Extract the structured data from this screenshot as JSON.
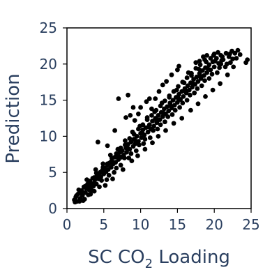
{
  "chart_data": {
    "type": "scatter",
    "title": "",
    "xlabel": "SC CO",
    "xlabel_subscript": "2",
    "xlabel_suffix": " Loading",
    "ylabel": "Prediction",
    "xlim": [
      0,
      25
    ],
    "ylim": [
      0,
      25
    ],
    "xticks": [
      "0",
      "5",
      "10",
      "15",
      "20",
      "25"
    ],
    "yticks": [
      "0",
      "5",
      "10",
      "15",
      "20",
      "25"
    ],
    "grid": false,
    "marker_color": "#000000",
    "series": [
      {
        "points": [
          [
            1.0,
            1.2
          ],
          [
            1.2,
            1.6
          ],
          [
            1.4,
            1.0
          ],
          [
            1.5,
            2.0
          ],
          [
            1.8,
            1.4
          ],
          [
            2.0,
            2.5
          ],
          [
            2.1,
            1.8
          ],
          [
            2.3,
            3.0
          ],
          [
            2.5,
            2.2
          ],
          [
            2.6,
            2.8
          ],
          [
            2.8,
            3.4
          ],
          [
            3.0,
            2.6
          ],
          [
            3.1,
            3.8
          ],
          [
            3.3,
            3.1
          ],
          [
            3.5,
            4.2
          ],
          [
            3.6,
            3.5
          ],
          [
            3.8,
            4.0
          ],
          [
            4.0,
            3.4
          ],
          [
            4.1,
            4.6
          ],
          [
            4.3,
            4.1
          ],
          [
            4.5,
            5.0
          ],
          [
            4.6,
            4.4
          ],
          [
            4.8,
            5.3
          ],
          [
            5.0,
            4.8
          ],
          [
            5.1,
            5.6
          ],
          [
            5.3,
            5.1
          ],
          [
            5.5,
            6.0
          ],
          [
            5.6,
            5.4
          ],
          [
            5.8,
            6.3
          ],
          [
            6.0,
            5.7
          ],
          [
            6.1,
            6.6
          ],
          [
            6.3,
            6.2
          ],
          [
            6.5,
            7.1
          ],
          [
            6.6,
            6.4
          ],
          [
            6.8,
            7.3
          ],
          [
            7.0,
            6.8
          ],
          [
            7.2,
            7.8
          ],
          [
            7.4,
            7.1
          ],
          [
            7.5,
            8.0
          ],
          [
            7.7,
            7.4
          ],
          [
            8.0,
            8.4
          ],
          [
            8.1,
            7.8
          ],
          [
            8.3,
            8.9
          ],
          [
            8.5,
            8.2
          ],
          [
            8.7,
            9.2
          ],
          [
            9.0,
            8.6
          ],
          [
            9.1,
            9.6
          ],
          [
            9.3,
            9.0
          ],
          [
            9.5,
            10.0
          ],
          [
            9.7,
            9.3
          ],
          [
            10.0,
            10.4
          ],
          [
            10.1,
            9.8
          ],
          [
            10.3,
            10.9
          ],
          [
            10.5,
            10.2
          ],
          [
            10.7,
            11.2
          ],
          [
            11.0,
            10.6
          ],
          [
            11.2,
            11.6
          ],
          [
            11.4,
            11.0
          ],
          [
            11.6,
            12.1
          ],
          [
            11.8,
            11.4
          ],
          [
            12.0,
            12.5
          ],
          [
            12.2,
            11.9
          ],
          [
            12.4,
            12.9
          ],
          [
            12.6,
            12.3
          ],
          [
            12.8,
            13.3
          ],
          [
            13.0,
            12.7
          ],
          [
            13.2,
            13.8
          ],
          [
            13.4,
            13.1
          ],
          [
            13.6,
            14.1
          ],
          [
            13.8,
            13.5
          ],
          [
            14.0,
            14.6
          ],
          [
            14.2,
            13.9
          ],
          [
            14.4,
            15.0
          ],
          [
            14.6,
            14.3
          ],
          [
            14.8,
            15.4
          ],
          [
            15.0,
            14.7
          ],
          [
            15.2,
            15.8
          ],
          [
            15.4,
            15.1
          ],
          [
            15.6,
            16.2
          ],
          [
            15.8,
            15.5
          ],
          [
            16.0,
            16.6
          ],
          [
            16.2,
            16.0
          ],
          [
            16.4,
            17.0
          ],
          [
            16.6,
            16.4
          ],
          [
            16.8,
            17.4
          ],
          [
            17.0,
            16.8
          ],
          [
            17.2,
            17.9
          ],
          [
            17.4,
            17.2
          ],
          [
            17.6,
            18.2
          ],
          [
            17.8,
            17.6
          ],
          [
            18.0,
            18.7
          ],
          [
            18.2,
            18.0
          ],
          [
            18.4,
            19.1
          ],
          [
            18.6,
            18.4
          ],
          [
            18.8,
            19.5
          ],
          [
            19.0,
            18.8
          ],
          [
            19.3,
            19.9
          ],
          [
            19.5,
            19.2
          ],
          [
            19.8,
            20.3
          ],
          [
            20.0,
            19.6
          ],
          [
            20.3,
            20.8
          ],
          [
            20.6,
            20.1
          ],
          [
            20.9,
            21.2
          ],
          [
            21.2,
            20.6
          ],
          [
            21.6,
            21.5
          ],
          [
            22.0,
            21.0
          ],
          [
            22.4,
            21.8
          ],
          [
            22.8,
            21.5
          ],
          [
            23.2,
            21.9
          ],
          [
            1.6,
            2.6
          ],
          [
            2.2,
            1.1
          ],
          [
            2.7,
            4.0
          ],
          [
            3.2,
            2.0
          ],
          [
            3.9,
            5.4
          ],
          [
            4.4,
            3.0
          ],
          [
            4.9,
            6.2
          ],
          [
            5.4,
            4.0
          ],
          [
            5.9,
            7.4
          ],
          [
            6.4,
            5.0
          ],
          [
            6.9,
            8.2
          ],
          [
            7.3,
            6.0
          ],
          [
            7.9,
            9.4
          ],
          [
            8.4,
            7.0
          ],
          [
            8.9,
            10.6
          ],
          [
            9.4,
            8.0
          ],
          [
            9.9,
            11.4
          ],
          [
            10.4,
            9.0
          ],
          [
            10.9,
            12.6
          ],
          [
            11.3,
            9.8
          ],
          [
            11.9,
            13.4
          ],
          [
            12.3,
            11.0
          ],
          [
            12.9,
            14.6
          ],
          [
            13.3,
            12.0
          ],
          [
            13.9,
            15.4
          ],
          [
            14.3,
            13.0
          ],
          [
            14.9,
            16.4
          ],
          [
            15.3,
            14.0
          ],
          [
            15.9,
            17.4
          ],
          [
            16.3,
            15.0
          ],
          [
            16.9,
            18.4
          ],
          [
            17.3,
            16.0
          ],
          [
            17.9,
            19.3
          ],
          [
            18.3,
            17.0
          ],
          [
            18.9,
            20.3
          ],
          [
            19.3,
            18.0
          ],
          [
            19.9,
            21.2
          ],
          [
            20.4,
            18.8
          ],
          [
            20.9,
            20.0
          ],
          [
            21.5,
            19.6
          ],
          [
            4.2,
            9.2
          ],
          [
            5.5,
            8.7
          ],
          [
            6.5,
            10.8
          ],
          [
            7.0,
            15.2
          ],
          [
            8.0,
            12.6
          ],
          [
            8.3,
            15.7
          ],
          [
            8.6,
            12.9
          ],
          [
            9.0,
            14.0
          ],
          [
            9.2,
            12.2
          ],
          [
            9.7,
            13.1
          ],
          [
            10.0,
            14.0
          ],
          [
            10.8,
            14.8
          ],
          [
            11.2,
            15.2
          ],
          [
            11.5,
            13.8
          ],
          [
            12.0,
            15.2
          ],
          [
            12.5,
            16.2
          ],
          [
            13.0,
            17.1
          ],
          [
            13.5,
            17.6
          ],
          [
            14.2,
            18.5
          ],
          [
            15.0,
            19.2
          ],
          [
            15.2,
            19.7
          ],
          [
            16.5,
            18.8
          ],
          [
            17.5,
            20.2
          ],
          [
            18.0,
            20.4
          ],
          [
            18.5,
            21.0
          ],
          [
            19.0,
            21.2
          ],
          [
            19.5,
            20.8
          ],
          [
            20.0,
            21.4
          ],
          [
            20.5,
            21.6
          ],
          [
            21.0,
            20.5
          ],
          [
            4.0,
            4.9
          ],
          [
            3.7,
            2.4
          ],
          [
            5.2,
            3.2
          ],
          [
            6.2,
            4.1
          ],
          [
            7.6,
            5.4
          ],
          [
            8.8,
            6.6
          ],
          [
            9.6,
            7.3
          ],
          [
            10.6,
            8.2
          ],
          [
            11.6,
            9.1
          ],
          [
            12.4,
            10.0
          ],
          [
            13.4,
            10.8
          ],
          [
            14.5,
            11.8
          ],
          [
            15.6,
            12.5
          ],
          [
            16.8,
            13.6
          ],
          [
            17.8,
            14.5
          ],
          [
            18.8,
            15.5
          ],
          [
            19.8,
            16.4
          ],
          [
            20.8,
            17.3
          ],
          [
            21.8,
            18.5
          ],
          [
            22.6,
            19.6
          ],
          [
            24.3,
            20.2
          ],
          [
            24.5,
            20.6
          ],
          [
            23.5,
            21.3
          ],
          [
            22.2,
            20.2
          ],
          [
            23.0,
            20.8
          ],
          [
            1.1,
            0.9
          ],
          [
            1.7,
            1.0
          ],
          [
            2.4,
            1.3
          ],
          [
            2.9,
            1.9
          ],
          [
            3.4,
            2.5
          ],
          [
            3.0,
            3.2
          ],
          [
            3.6,
            3.1
          ],
          [
            4.7,
            3.9
          ],
          [
            4.2,
            4.4
          ],
          [
            5.7,
            4.6
          ],
          [
            5.0,
            5.4
          ],
          [
            6.7,
            5.6
          ],
          [
            6.0,
            6.5
          ],
          [
            7.1,
            7.2
          ],
          [
            7.8,
            7.0
          ],
          [
            8.2,
            8.4
          ],
          [
            8.7,
            7.6
          ],
          [
            9.2,
            9.5
          ],
          [
            9.8,
            8.8
          ],
          [
            10.2,
            10.5
          ],
          [
            10.6,
            9.6
          ],
          [
            11.1,
            11.3
          ],
          [
            11.7,
            10.8
          ],
          [
            12.1,
            12.4
          ],
          [
            12.7,
            11.6
          ],
          [
            13.1,
            13.2
          ],
          [
            13.7,
            12.7
          ],
          [
            14.1,
            14.2
          ],
          [
            14.7,
            13.6
          ],
          [
            15.1,
            15.3
          ],
          [
            15.7,
            14.6
          ],
          [
            16.1,
            16.2
          ],
          [
            16.7,
            15.7
          ],
          [
            17.1,
            17.3
          ],
          [
            17.7,
            16.6
          ],
          [
            18.1,
            18.3
          ],
          [
            18.7,
            17.7
          ],
          [
            19.1,
            19.4
          ],
          [
            19.7,
            18.6
          ],
          [
            20.1,
            20.4
          ],
          [
            20.7,
            19.5
          ],
          [
            21.1,
            21.0
          ],
          [
            21.7,
            20.0
          ],
          [
            22.1,
            21.4
          ],
          [
            22.5,
            20.7
          ],
          [
            1.3,
            1.8
          ],
          [
            1.9,
            2.2
          ],
          [
            2.5,
            3.1
          ],
          [
            3.1,
            3.5
          ],
          [
            3.7,
            4.3
          ],
          [
            4.3,
            4.8
          ],
          [
            4.9,
            5.7
          ],
          [
            5.5,
            6.2
          ],
          [
            6.1,
            7.0
          ],
          [
            6.7,
            7.6
          ],
          [
            7.3,
            8.4
          ],
          [
            7.9,
            8.8
          ],
          [
            8.5,
            9.7
          ],
          [
            9.1,
            10.3
          ],
          [
            9.7,
            11.0
          ],
          [
            10.3,
            11.6
          ],
          [
            10.9,
            12.3
          ],
          [
            11.5,
            12.9
          ],
          [
            12.1,
            13.6
          ],
          [
            12.7,
            14.2
          ],
          [
            13.3,
            14.9
          ],
          [
            13.9,
            15.6
          ],
          [
            14.5,
            16.2
          ],
          [
            15.1,
            16.9
          ],
          [
            15.7,
            17.5
          ],
          [
            16.3,
            18.1
          ],
          [
            16.9,
            18.7
          ],
          [
            17.5,
            19.4
          ],
          [
            18.1,
            19.9
          ],
          [
            18.7,
            20.6
          ]
        ]
      }
    ]
  }
}
